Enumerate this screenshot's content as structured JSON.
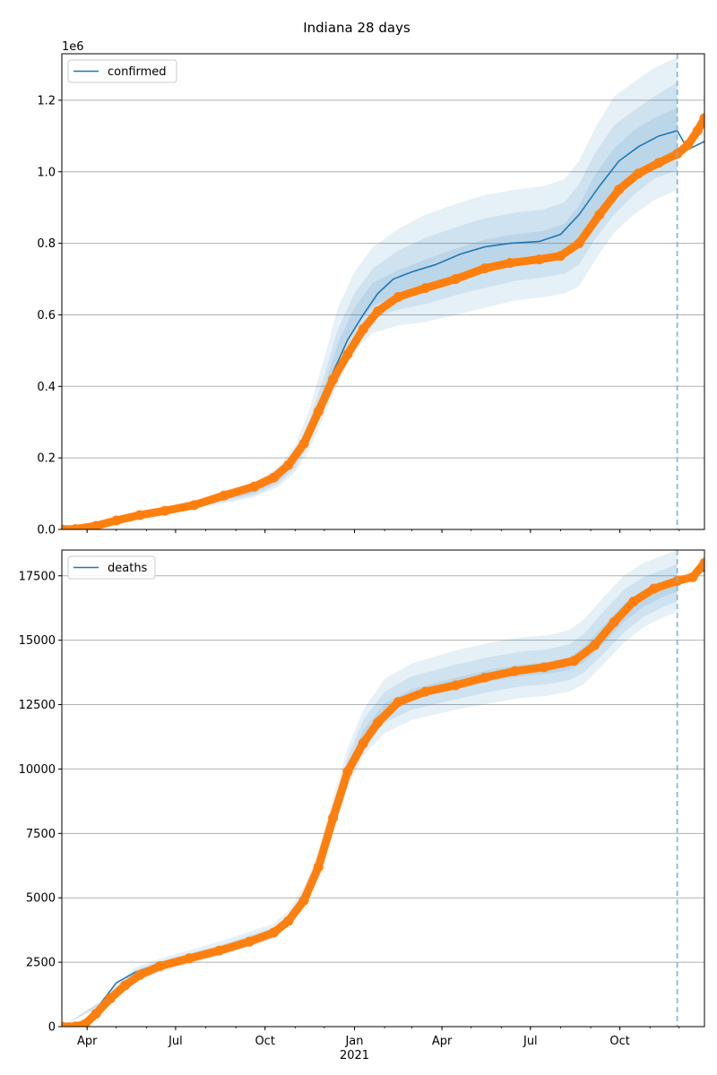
{
  "title": "Indiana 28 days",
  "colors": {
    "model": "#1f77b4",
    "observed": "#ff7f0e",
    "band": "#1f77b4",
    "grid": "#b0b0b0",
    "vline": "#7fb3d5"
  },
  "x_axis": {
    "start": "2020-03-06",
    "end": "2021-12-27",
    "ticks": [
      {
        "date": "2020-04-01",
        "label": "Apr",
        "sublabel": ""
      },
      {
        "date": "2020-07-01",
        "label": "Jul",
        "sublabel": ""
      },
      {
        "date": "2020-10-01",
        "label": "Oct",
        "sublabel": ""
      },
      {
        "date": "2021-01-01",
        "label": "Jan",
        "sublabel": "2021"
      },
      {
        "date": "2021-04-01",
        "label": "Apr",
        "sublabel": ""
      },
      {
        "date": "2021-07-01",
        "label": "Jul",
        "sublabel": ""
      },
      {
        "date": "2021-10-01",
        "label": "Oct",
        "sublabel": ""
      }
    ],
    "forecast_start": "2021-11-29"
  },
  "chart_data": [
    {
      "type": "line",
      "legend": "confirmed",
      "legend_position": "top-left",
      "scale_label": "1e6",
      "scale": 1000000,
      "ylim": [
        0,
        1330000
      ],
      "yticks": [
        {
          "value": 0,
          "label": "0.0"
        },
        {
          "value": 200000,
          "label": "0.2"
        },
        {
          "value": 400000,
          "label": "0.4"
        },
        {
          "value": 600000,
          "label": "0.6"
        },
        {
          "value": 800000,
          "label": "0.8"
        },
        {
          "value": 1000000,
          "label": "1.0"
        },
        {
          "value": 1200000,
          "label": "1.2"
        }
      ],
      "grid": "horizontal",
      "model": {
        "dates": [
          "2020-03-06",
          "2020-03-26",
          "2020-04-20",
          "2020-05-15",
          "2020-06-10",
          "2020-07-10",
          "2020-08-10",
          "2020-09-10",
          "2020-10-10",
          "2020-10-25",
          "2020-11-10",
          "2020-11-25",
          "2020-12-10",
          "2020-12-25",
          "2021-01-10",
          "2021-01-25",
          "2021-02-10",
          "2021-03-01",
          "2021-03-25",
          "2021-04-20",
          "2021-05-15",
          "2021-06-10",
          "2021-07-10",
          "2021-08-01",
          "2021-08-20",
          "2021-09-10",
          "2021-09-30",
          "2021-10-20",
          "2021-11-10",
          "2021-11-29",
          "2021-12-10",
          "2021-12-27"
        ],
        "values": [
          0,
          1000,
          15000,
          32000,
          45000,
          55000,
          80000,
          105000,
          140000,
          175000,
          240000,
          340000,
          440000,
          530000,
          600000,
          660000,
          700000,
          720000,
          740000,
          770000,
          790000,
          800000,
          805000,
          825000,
          880000,
          960000,
          1030000,
          1070000,
          1100000,
          1115000,
          1062000,
          1085000
        ]
      },
      "bands": [
        {
          "level": "outer",
          "dates": [
            "2020-03-06",
            "2020-04-20",
            "2020-06-10",
            "2020-08-10",
            "2020-09-20",
            "2020-10-15",
            "2020-11-01",
            "2020-11-15",
            "2020-12-01",
            "2020-12-15",
            "2021-01-01",
            "2021-01-20",
            "2021-02-15",
            "2021-03-15",
            "2021-04-15",
            "2021-05-15",
            "2021-06-15",
            "2021-07-15",
            "2021-08-05",
            "2021-08-20",
            "2021-09-05",
            "2021-09-25",
            "2021-10-15",
            "2021-11-05",
            "2021-11-29"
          ],
          "lower": [
            0,
            10000,
            38000,
            68000,
            90000,
            120000,
            160000,
            220000,
            320000,
            410000,
            500000,
            550000,
            570000,
            580000,
            600000,
            620000,
            640000,
            650000,
            660000,
            680000,
            750000,
            830000,
            880000,
            920000,
            950000
          ],
          "upper": [
            0,
            20000,
            55000,
            95000,
            130000,
            175000,
            235000,
            330000,
            480000,
            620000,
            720000,
            790000,
            840000,
            880000,
            910000,
            935000,
            950000,
            960000,
            980000,
            1030000,
            1120000,
            1210000,
            1250000,
            1290000,
            1320000
          ]
        },
        {
          "level": "middle",
          "dates": [
            "2020-03-06",
            "2020-04-20",
            "2020-06-10",
            "2020-08-10",
            "2020-09-20",
            "2020-10-15",
            "2020-11-01",
            "2020-11-15",
            "2020-12-01",
            "2020-12-15",
            "2021-01-01",
            "2021-01-20",
            "2021-02-15",
            "2021-03-15",
            "2021-04-15",
            "2021-05-15",
            "2021-06-15",
            "2021-07-15",
            "2021-08-05",
            "2021-08-20",
            "2021-09-05",
            "2021-09-25",
            "2021-10-15",
            "2021-11-05",
            "2021-11-29"
          ],
          "lower": [
            0,
            12000,
            40000,
            72000,
            96000,
            128000,
            172000,
            240000,
            350000,
            445000,
            535000,
            590000,
            615000,
            630000,
            655000,
            675000,
            695000,
            705000,
            715000,
            740000,
            810000,
            880000,
            935000,
            980000,
            1005000
          ],
          "upper": [
            0,
            18000,
            51000,
            88000,
            120000,
            160000,
            215000,
            300000,
            430000,
            560000,
            660000,
            730000,
            780000,
            815000,
            845000,
            870000,
            885000,
            895000,
            915000,
            965000,
            1050000,
            1130000,
            1170000,
            1210000,
            1250000
          ]
        },
        {
          "level": "inner",
          "dates": [
            "2020-03-06",
            "2020-04-20",
            "2020-06-10",
            "2020-08-10",
            "2020-09-20",
            "2020-10-15",
            "2020-11-01",
            "2020-11-15",
            "2020-12-01",
            "2020-12-15",
            "2021-01-01",
            "2021-01-20",
            "2021-02-15",
            "2021-03-15",
            "2021-04-15",
            "2021-05-15",
            "2021-06-15",
            "2021-07-15",
            "2021-08-05",
            "2021-08-20",
            "2021-09-05",
            "2021-09-25",
            "2021-10-15",
            "2021-11-05",
            "2021-11-29"
          ],
          "lower": [
            0,
            14000,
            43000,
            76000,
            102000,
            136000,
            184000,
            260000,
            380000,
            480000,
            565000,
            625000,
            655000,
            675000,
            700000,
            725000,
            745000,
            752000,
            762000,
            790000,
            865000,
            935000,
            990000,
            1030000,
            1060000
          ],
          "upper": [
            0,
            16000,
            48000,
            83000,
            112000,
            150000,
            200000,
            280000,
            400000,
            520000,
            620000,
            690000,
            725000,
            755000,
            785000,
            810000,
            825000,
            835000,
            855000,
            905000,
            990000,
            1065000,
            1115000,
            1150000,
            1180000
          ]
        }
      ],
      "observed": {
        "dates": [
          "2020-03-06",
          "2020-03-20",
          "2020-04-10",
          "2020-05-01",
          "2020-05-25",
          "2020-06-20",
          "2020-07-20",
          "2020-08-20",
          "2020-09-20",
          "2020-10-10",
          "2020-10-25",
          "2020-11-10",
          "2020-11-25",
          "2020-12-10",
          "2020-12-25",
          "2021-01-10",
          "2021-01-25",
          "2021-02-15",
          "2021-03-15",
          "2021-04-15",
          "2021-05-15",
          "2021-06-10",
          "2021-07-10",
          "2021-08-01",
          "2021-08-20",
          "2021-09-10",
          "2021-09-30",
          "2021-10-20",
          "2021-11-10",
          "2021-11-29",
          "2021-12-10",
          "2021-12-20",
          "2021-12-27"
        ],
        "values": [
          0,
          1000,
          10000,
          25000,
          40000,
          52000,
          68000,
          95000,
          120000,
          145000,
          180000,
          240000,
          330000,
          420000,
          490000,
          560000,
          610000,
          650000,
          675000,
          700000,
          730000,
          745000,
          755000,
          765000,
          800000,
          880000,
          950000,
          995000,
          1025000,
          1050000,
          1075000,
          1115000,
          1150000
        ]
      }
    },
    {
      "type": "line",
      "legend": "deaths",
      "legend_position": "top-left",
      "scale_label": "",
      "scale": 1,
      "ylim": [
        0,
        18500
      ],
      "yticks": [
        {
          "value": 0,
          "label": "0"
        },
        {
          "value": 2500,
          "label": "2500"
        },
        {
          "value": 5000,
          "label": "5000"
        },
        {
          "value": 7500,
          "label": "7500"
        },
        {
          "value": 10000,
          "label": "10000"
        },
        {
          "value": 12500,
          "label": "12500"
        },
        {
          "value": 15000,
          "label": "15000"
        },
        {
          "value": 17500,
          "label": "17500"
        }
      ],
      "grid": "horizontal",
      "model": {
        "dates": [
          "2020-03-06",
          "2020-03-20",
          "2020-04-01",
          "2020-04-15",
          "2020-05-01",
          "2020-05-20",
          "2020-06-15",
          "2020-07-15",
          "2020-08-15",
          "2020-09-15",
          "2020-10-10",
          "2020-10-25",
          "2020-11-10",
          "2020-11-25",
          "2020-12-10",
          "2020-12-25",
          "2021-01-10",
          "2021-01-25",
          "2021-02-15",
          "2021-03-15",
          "2021-04-15",
          "2021-05-15",
          "2021-06-15",
          "2021-07-15",
          "2021-08-15",
          "2021-09-05",
          "2021-09-25",
          "2021-10-15",
          "2021-11-05",
          "2021-11-29",
          "2021-12-27"
        ],
        "values": [
          0,
          20,
          200,
          900,
          1700,
          2100,
          2450,
          2700,
          3000,
          3350,
          3700,
          4200,
          5000,
          6300,
          8200,
          9900,
          11100,
          12000,
          12700,
          13050,
          13350,
          13650,
          13850,
          13950,
          14200,
          14900,
          15800,
          16600,
          17000,
          17300,
          17700
        ]
      },
      "bands": [
        {
          "level": "outer",
          "dates": [
            "2020-03-06",
            "2020-04-15",
            "2020-05-20",
            "2020-06-20",
            "2020-08-15",
            "2020-10-10",
            "2020-10-25",
            "2020-11-10",
            "2020-11-25",
            "2020-12-10",
            "2020-12-25",
            "2021-01-10",
            "2021-02-01",
            "2021-03-01",
            "2021-04-15",
            "2021-05-20",
            "2021-06-20",
            "2021-07-20",
            "2021-08-10",
            "2021-08-25",
            "2021-09-15",
            "2021-10-05",
            "2021-10-25",
            "2021-11-15",
            "2021-11-29"
          ],
          "lower": [
            0,
            800,
            1800,
            2150,
            2750,
            3400,
            3900,
            4600,
            5800,
            7600,
            9300,
            10500,
            11400,
            11900,
            12300,
            12550,
            12750,
            12850,
            13000,
            13300,
            14100,
            14900,
            15500,
            15900,
            16100
          ],
          "upper": [
            0,
            1000,
            2300,
            2700,
            3300,
            4000,
            4500,
            5400,
            6800,
            8900,
            10800,
            12300,
            13500,
            14100,
            14600,
            14900,
            15100,
            15200,
            15400,
            15800,
            16700,
            17500,
            18000,
            18300,
            18500
          ]
        },
        {
          "level": "middle",
          "dates": [
            "2020-03-06",
            "2020-04-15",
            "2020-05-20",
            "2020-06-20",
            "2020-08-15",
            "2020-10-10",
            "2020-10-25",
            "2020-11-10",
            "2020-11-25",
            "2020-12-10",
            "2020-12-25",
            "2021-01-10",
            "2021-02-01",
            "2021-03-01",
            "2021-04-15",
            "2021-05-20",
            "2021-06-20",
            "2021-07-20",
            "2021-08-10",
            "2021-08-25",
            "2021-09-15",
            "2021-10-05",
            "2021-10-25",
            "2021-11-15",
            "2021-11-29"
          ],
          "lower": [
            0,
            850,
            1900,
            2250,
            2850,
            3500,
            4000,
            4750,
            6000,
            7850,
            9550,
            10800,
            11800,
            12300,
            12700,
            13000,
            13200,
            13300,
            13450,
            13750,
            14500,
            15300,
            15900,
            16300,
            16500
          ],
          "upper": [
            0,
            950,
            2200,
            2600,
            3150,
            3850,
            4350,
            5200,
            6550,
            8600,
            10450,
            11900,
            13000,
            13600,
            14050,
            14350,
            14550,
            14650,
            14850,
            15250,
            16150,
            16950,
            17450,
            17750,
            17950
          ]
        },
        {
          "level": "inner",
          "dates": [
            "2020-03-06",
            "2020-04-15",
            "2020-05-20",
            "2020-06-20",
            "2020-08-15",
            "2020-10-10",
            "2020-10-25",
            "2020-11-10",
            "2020-11-25",
            "2020-12-10",
            "2020-12-25",
            "2021-01-10",
            "2021-02-01",
            "2021-03-01",
            "2021-04-15",
            "2021-05-20",
            "2021-06-20",
            "2021-07-20",
            "2021-08-10",
            "2021-08-25",
            "2021-09-15",
            "2021-10-05",
            "2021-10-25",
            "2021-11-15",
            "2021-11-29"
          ],
          "lower": [
            0,
            880,
            2000,
            2350,
            2950,
            3600,
            4100,
            4900,
            6150,
            8100,
            9800,
            11100,
            12200,
            12700,
            13100,
            13400,
            13600,
            13700,
            13850,
            14150,
            14900,
            15700,
            16300,
            16700,
            16900
          ],
          "upper": [
            0,
            920,
            2100,
            2500,
            3050,
            3750,
            4250,
            5050,
            6400,
            8400,
            10150,
            11500,
            12550,
            13100,
            13550,
            13850,
            14050,
            14150,
            14350,
            14750,
            15600,
            16400,
            16950,
            17250,
            17450
          ]
        }
      ],
      "observed": {
        "dates": [
          "2020-03-06",
          "2020-03-20",
          "2020-03-30",
          "2020-04-10",
          "2020-04-25",
          "2020-05-10",
          "2020-05-25",
          "2020-06-15",
          "2020-07-15",
          "2020-08-15",
          "2020-09-15",
          "2020-10-10",
          "2020-10-25",
          "2020-11-10",
          "2020-11-25",
          "2020-12-10",
          "2020-12-25",
          "2021-01-10",
          "2021-01-25",
          "2021-02-15",
          "2021-03-15",
          "2021-04-15",
          "2021-05-15",
          "2021-06-15",
          "2021-07-15",
          "2021-08-15",
          "2021-09-05",
          "2021-09-25",
          "2021-10-15",
          "2021-11-05",
          "2021-11-29",
          "2021-12-15",
          "2021-12-27"
        ],
        "values": [
          0,
          10,
          100,
          500,
          1100,
          1600,
          2000,
          2350,
          2650,
          2950,
          3300,
          3650,
          4100,
          4900,
          6200,
          8100,
          9900,
          11000,
          11800,
          12600,
          13000,
          13250,
          13550,
          13800,
          13950,
          14200,
          14800,
          15700,
          16500,
          17000,
          17300,
          17450,
          18000
        ]
      }
    }
  ]
}
